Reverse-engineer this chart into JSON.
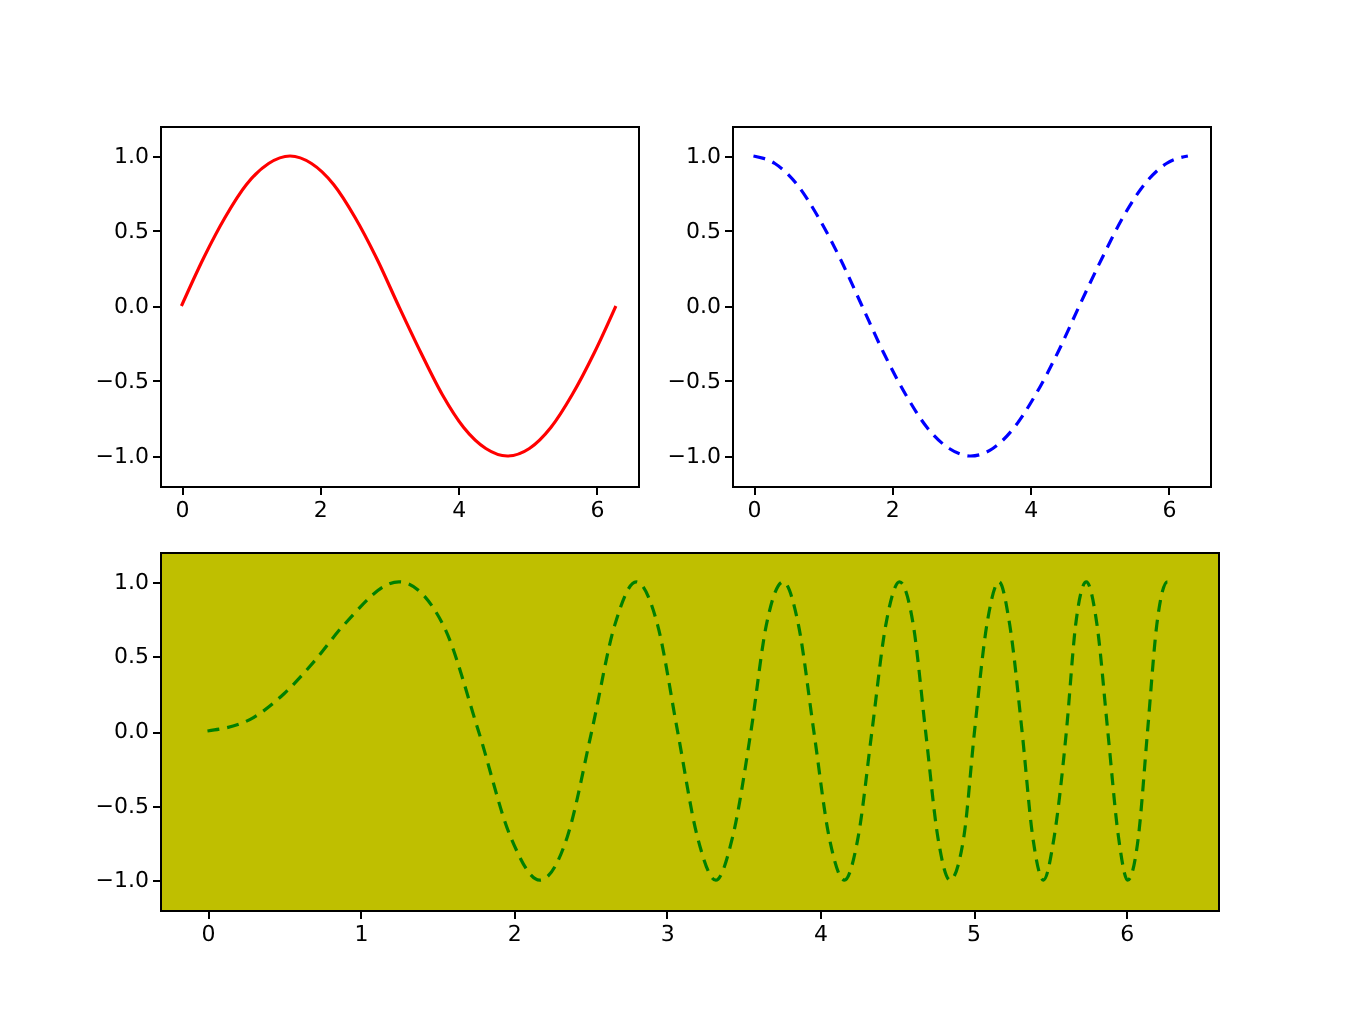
{
  "chart_data": [
    {
      "type": "line",
      "xlim": [
        -0.31,
        6.6
      ],
      "ylim": [
        -1.2,
        1.2
      ],
      "xticks": [
        0,
        2,
        4,
        6
      ],
      "yticks": [
        {
          "value": -1,
          "label": "−1.0"
        },
        {
          "value": -0.5,
          "label": "−0.5"
        },
        {
          "value": 0,
          "label": "0.0"
        },
        {
          "value": 0.5,
          "label": "0.5"
        },
        {
          "value": 1,
          "label": "1.0"
        }
      ],
      "grid": false,
      "series": [
        {
          "color": "#ff0000",
          "line_style": "solid",
          "x": [
            0,
            0.31,
            0.63,
            0.94,
            1.26,
            1.57,
            1.88,
            2.2,
            2.51,
            2.83,
            3.14,
            3.46,
            3.77,
            4.08,
            4.4,
            4.71,
            5.03,
            5.34,
            5.65,
            5.97,
            6.28
          ],
          "values": [
            0,
            0.31,
            0.59,
            0.81,
            0.95,
            1,
            0.95,
            0.81,
            0.59,
            0.31,
            0,
            -0.31,
            -0.59,
            -0.81,
            -0.95,
            -1,
            -0.95,
            -0.81,
            -0.59,
            -0.31,
            0
          ]
        }
      ]
    },
    {
      "type": "line",
      "xlim": [
        -0.31,
        6.6
      ],
      "ylim": [
        -1.2,
        1.2
      ],
      "xticks": [
        0,
        2,
        4,
        6
      ],
      "yticks": [
        {
          "value": -1,
          "label": "−1.0"
        },
        {
          "value": -0.5,
          "label": "−0.5"
        },
        {
          "value": 0,
          "label": "0.0"
        },
        {
          "value": 0.5,
          "label": "0.5"
        },
        {
          "value": 1,
          "label": "1.0"
        }
      ],
      "grid": false,
      "series": [
        {
          "color": "#0000ff",
          "line_style": "dashed",
          "x": [
            0,
            0.31,
            0.63,
            0.94,
            1.26,
            1.57,
            1.88,
            2.2,
            2.51,
            2.83,
            3.14,
            3.46,
            3.77,
            4.08,
            4.4,
            4.71,
            5.03,
            5.34,
            5.65,
            5.97,
            6.28
          ],
          "values": [
            1,
            0.95,
            0.81,
            0.59,
            0.31,
            0,
            -0.31,
            -0.59,
            -0.81,
            -0.95,
            -1,
            -0.95,
            -0.81,
            -0.59,
            -0.31,
            0,
            0.31,
            0.59,
            0.81,
            0.95,
            1
          ]
        }
      ]
    },
    {
      "type": "line",
      "xlim": [
        -0.31,
        6.6
      ],
      "ylim": [
        -1.2,
        1.2
      ],
      "xticks": [
        0,
        1,
        2,
        3,
        4,
        5,
        6
      ],
      "yticks": [
        {
          "value": -1,
          "label": "−1.0"
        },
        {
          "value": -0.5,
          "label": "−0.5"
        },
        {
          "value": 0,
          "label": "0.0"
        },
        {
          "value": 0.5,
          "label": "0.5"
        },
        {
          "value": 1,
          "label": "1.0"
        }
      ],
      "grid": false,
      "series": [
        {
          "color": "#008000",
          "line_style": "dashed",
          "x": [
            0,
            0.3,
            0.5,
            0.7,
            0.89,
            1.25,
            1.54,
            1.77,
            1.98,
            2.17,
            2.35,
            2.51,
            2.66,
            2.8,
            2.94,
            3.07,
            3.2,
            3.32,
            3.43,
            3.55,
            3.65,
            3.76,
            3.86,
            3.96,
            4.06,
            4.16,
            4.25,
            4.34,
            4.43,
            4.52,
            4.61,
            4.69,
            4.77,
            4.85,
            4.94,
            5.01,
            5.09,
            5.17,
            5.24,
            5.32,
            5.39,
            5.46,
            5.53,
            5.61,
            5.67,
            5.74,
            5.81,
            5.88,
            5.95,
            6.01,
            6.08,
            6.14,
            6.2,
            6.27,
            6.28
          ],
          "values": [
            0,
            0.09,
            0.25,
            0.47,
            0.71,
            1,
            0.71,
            0,
            -0.71,
            -1,
            -0.71,
            0,
            0.71,
            1,
            0.71,
            0,
            -0.71,
            -1,
            -0.71,
            0,
            0.71,
            1,
            0.71,
            0,
            -0.71,
            -1,
            -0.71,
            0,
            0.71,
            1,
            0.71,
            0,
            -0.71,
            -1,
            -0.71,
            0,
            0.71,
            1,
            0.71,
            0,
            -0.71,
            -1,
            -0.71,
            0,
            0.71,
            1,
            0.71,
            0,
            -0.71,
            -1,
            -0.71,
            0,
            0.71,
            1,
            0.98
          ]
        }
      ]
    }
  ]
}
